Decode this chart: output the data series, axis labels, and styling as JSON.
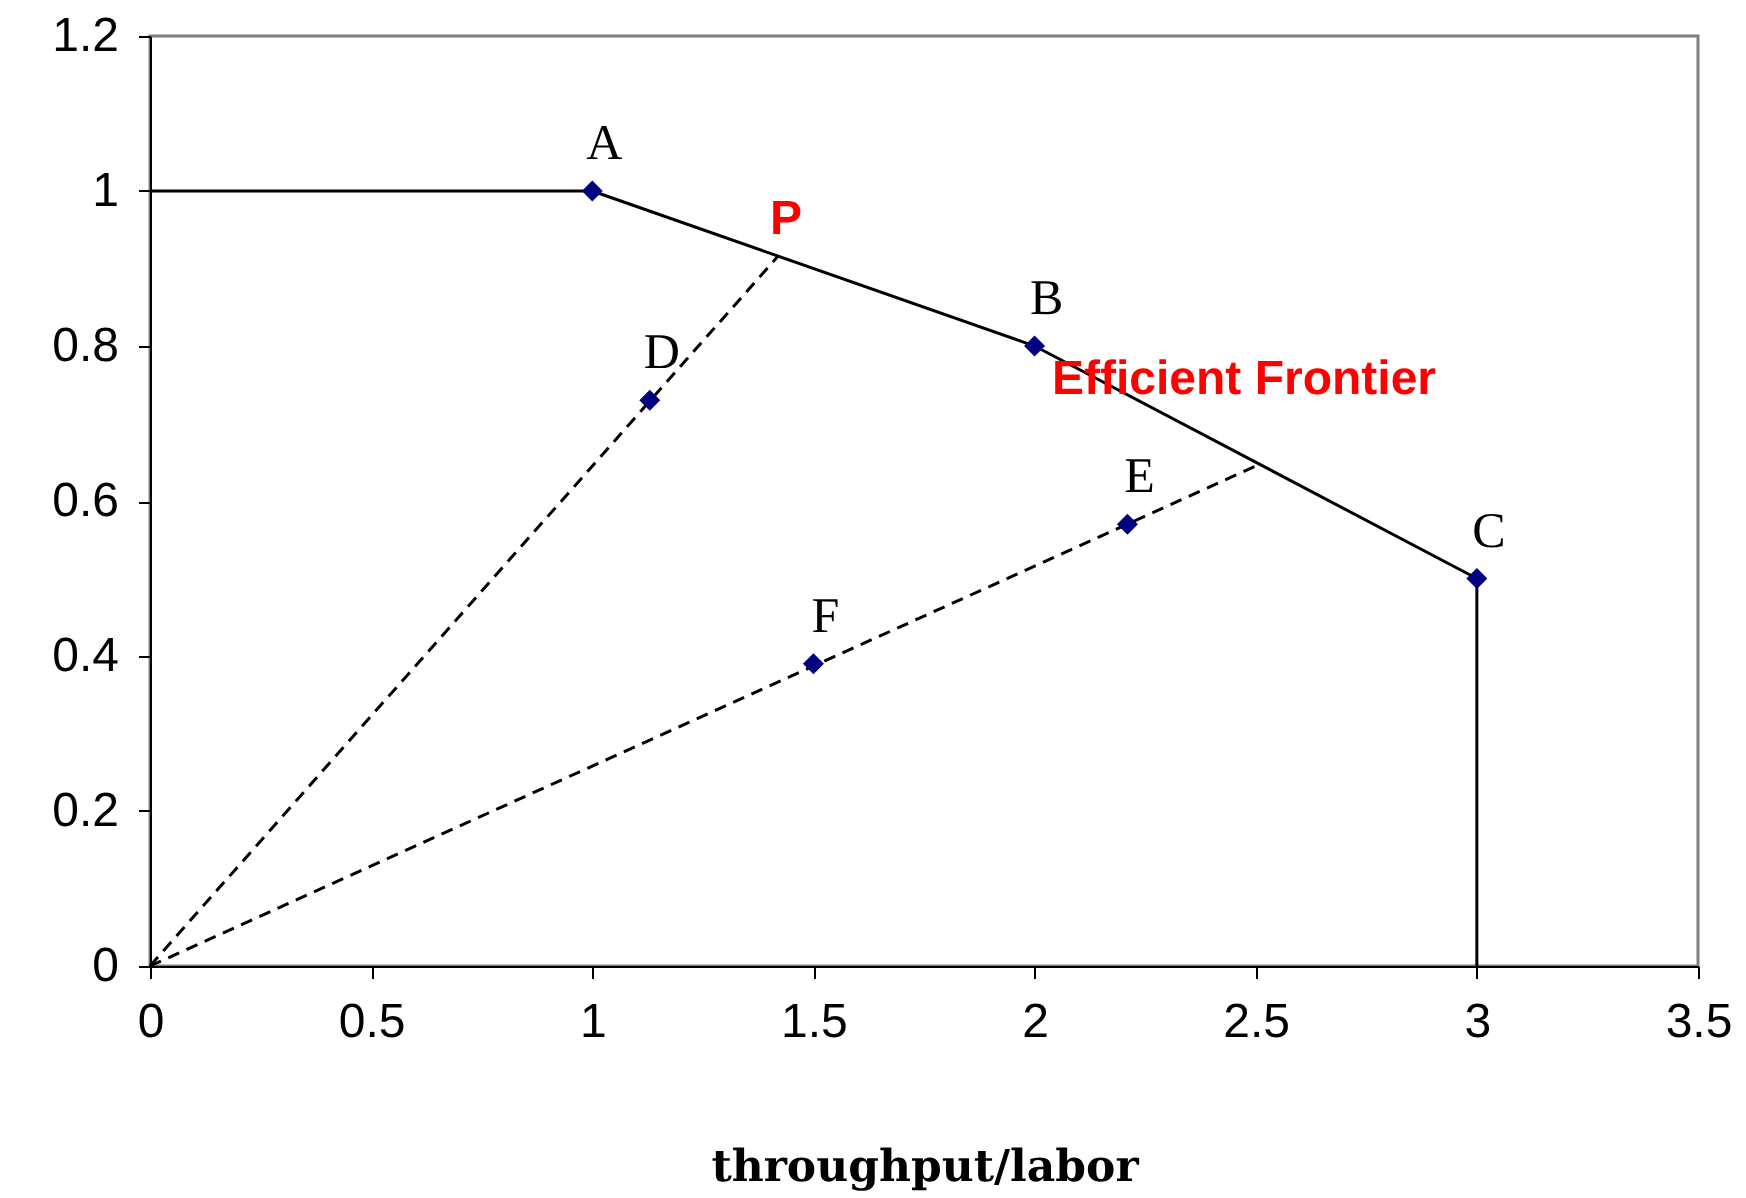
{
  "chart_data": {
    "type": "line",
    "xlabel": "throughput/labor",
    "xlim": [
      0,
      3.5
    ],
    "xticks": [
      0,
      0.5,
      1,
      1.5,
      2,
      2.5,
      3,
      3.5
    ],
    "ylim": [
      0,
      1.2
    ],
    "yticks": [
      0,
      0.2,
      0.4,
      0.6,
      0.8,
      1,
      1.2
    ],
    "grid": false,
    "series": [
      {
        "color": "#000000",
        "line_style": "solid",
        "marker": "none",
        "x": [
          0,
          1,
          2,
          3,
          3
        ],
        "values": [
          1,
          1,
          0.8,
          0.5,
          0
        ]
      },
      {
        "color": "#000000",
        "line_style": "dashed",
        "marker": "none",
        "x": [
          0,
          1.42
        ],
        "values": [
          0,
          0.916
        ]
      },
      {
        "color": "#000000",
        "line_style": "dashed",
        "marker": "none",
        "x": [
          0,
          2.5
        ],
        "values": [
          0,
          0.645
        ]
      },
      {
        "type": "scatter",
        "color": "#000080",
        "marker": "diamond",
        "x": [
          1,
          2,
          3,
          1.13,
          2.21,
          1.5
        ],
        "values": [
          1,
          0.8,
          0.5,
          0.73,
          0.57,
          0.39
        ],
        "value_labels": [
          "A",
          "B",
          "C",
          "D",
          "E",
          "F"
        ]
      }
    ],
    "annotations": [
      {
        "text": "P",
        "x": 1.42,
        "y": 0.916
      },
      "Efficient Frontier"
    ]
  }
}
